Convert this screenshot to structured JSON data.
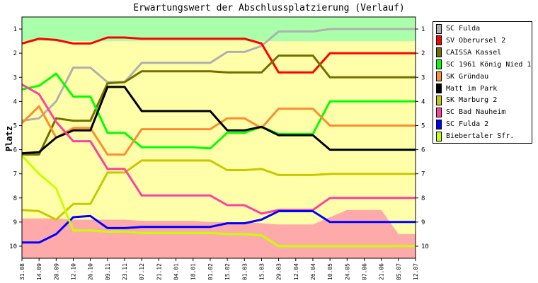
{
  "chart_data": {
    "type": "line",
    "title": "Erwartungswert der Abschlussplatzierung (Verlauf)",
    "xlabel": "",
    "ylabel": "Platz",
    "ylim": [
      10.5,
      0.5
    ],
    "y_inverted": true,
    "yticks": [
      1,
      2,
      3,
      4,
      5,
      6,
      7,
      8,
      9,
      10
    ],
    "categories": [
      "31.08",
      "14.09",
      "28.09",
      "12.10",
      "26.10",
      "09.11",
      "23.11",
      "07.12",
      "21.12",
      "04.01",
      "18.01",
      "01.02",
      "15.02",
      "01.03",
      "15.03",
      "29.03",
      "12.04",
      "26.04",
      "10.05",
      "24.05",
      "07.06",
      "21.06",
      "05.07",
      "12.07"
    ],
    "bands": [
      {
        "name": "promotion",
        "color": "#aaffaa",
        "upper": [
          1.5,
          1.5,
          1.5,
          1.5,
          1.5,
          1.5,
          1.5,
          1.5,
          1.5,
          1.5,
          1.5,
          1.5,
          1.5,
          1.5,
          1.5,
          1.5,
          1.5,
          1.5,
          1.5,
          1.5,
          1.5,
          1.5,
          1.5,
          1.5
        ]
      },
      {
        "name": "relegation",
        "color": "#ffaaaa",
        "lower": [
          8.85,
          8.85,
          8.85,
          8.9,
          8.9,
          8.9,
          8.9,
          8.95,
          8.95,
          8.95,
          8.95,
          9.0,
          9.0,
          9.0,
          9.05,
          9.1,
          9.1,
          9.1,
          8.8,
          8.5,
          8.5,
          8.5,
          9.5,
          9.5
        ]
      }
    ],
    "series": [
      {
        "name": "SC Fulda",
        "color": "#b0b0b0",
        "values": [
          4.8,
          4.7,
          4.0,
          2.6,
          2.6,
          3.2,
          3.2,
          2.4,
          2.4,
          2.4,
          2.4,
          2.4,
          1.95,
          1.95,
          1.7,
          1.1,
          1.1,
          1.1,
          1.0,
          1.0,
          1.0,
          1.0,
          1.0,
          1.0
        ]
      },
      {
        "name": "SV Oberursel 2",
        "color": "#ff0000",
        "values": [
          1.6,
          1.4,
          1.45,
          1.6,
          1.6,
          1.35,
          1.35,
          1.4,
          1.4,
          1.4,
          1.4,
          1.4,
          1.4,
          1.4,
          1.6,
          2.8,
          2.8,
          2.8,
          2.0,
          2.0,
          2.0,
          2.0,
          2.0,
          2.0
        ]
      },
      {
        "name": "CAISSA Kassel",
        "color": "#707000",
        "values": [
          6.2,
          6.2,
          4.7,
          4.8,
          4.8,
          3.25,
          3.2,
          2.75,
          2.75,
          2.75,
          2.75,
          2.75,
          2.8,
          2.8,
          2.8,
          2.1,
          2.1,
          2.1,
          3.0,
          3.0,
          3.0,
          3.0,
          3.0,
          3.0
        ]
      },
      {
        "name": "SC 1961 König Nied 1",
        "color": "#00ff00",
        "values": [
          3.5,
          3.35,
          2.85,
          3.8,
          3.8,
          5.3,
          5.3,
          5.9,
          5.9,
          5.9,
          5.9,
          5.95,
          5.3,
          5.3,
          5.05,
          5.35,
          5.35,
          5.35,
          4.0,
          4.0,
          4.0,
          4.0,
          4.0,
          4.0
        ]
      },
      {
        "name": "SK Gründau",
        "color": "#ff8c30",
        "values": [
          4.9,
          4.2,
          5.5,
          5.1,
          5.1,
          6.2,
          6.2,
          5.15,
          5.15,
          5.15,
          5.15,
          5.15,
          4.7,
          4.7,
          5.1,
          4.3,
          4.3,
          4.3,
          5.0,
          5.0,
          5.0,
          5.0,
          5.0,
          5.0
        ]
      },
      {
        "name": "Matt im Park",
        "color": "#000000",
        "values": [
          6.15,
          6.1,
          5.5,
          5.2,
          5.2,
          3.4,
          3.4,
          4.4,
          4.4,
          4.4,
          4.4,
          4.4,
          5.2,
          5.2,
          5.05,
          5.4,
          5.4,
          5.4,
          6.0,
          6.0,
          6.0,
          6.0,
          6.0,
          6.0
        ]
      },
      {
        "name": "SK Marburg 2",
        "color": "#c8c800",
        "values": [
          8.5,
          8.55,
          8.9,
          8.25,
          8.25,
          6.95,
          6.95,
          6.45,
          6.45,
          6.45,
          6.45,
          6.45,
          6.85,
          6.85,
          6.8,
          7.05,
          7.05,
          7.05,
          7.0,
          7.0,
          7.0,
          7.0,
          7.0,
          7.0
        ]
      },
      {
        "name": "SC Bad Nauheim",
        "color": "#ff40a0",
        "values": [
          3.3,
          3.7,
          4.85,
          5.65,
          5.65,
          6.8,
          6.8,
          7.9,
          7.9,
          7.9,
          7.9,
          7.9,
          8.3,
          8.3,
          8.65,
          8.5,
          8.5,
          8.5,
          8.0,
          8.0,
          8.0,
          8.0,
          8.0,
          8.0
        ]
      },
      {
        "name": "SC Fulda 2",
        "color": "#0000ff",
        "values": [
          9.85,
          9.85,
          9.5,
          8.8,
          8.75,
          9.25,
          9.25,
          9.2,
          9.2,
          9.2,
          9.2,
          9.2,
          9.05,
          9.05,
          8.9,
          8.55,
          8.55,
          8.55,
          9.0,
          9.0,
          9.0,
          9.0,
          9.0,
          9.0
        ]
      },
      {
        "name": "Biebertaler Sfr.",
        "color": "#c8ff00",
        "values": [
          6.25,
          7.0,
          7.6,
          9.35,
          9.35,
          9.4,
          9.4,
          9.45,
          9.45,
          9.45,
          9.45,
          9.45,
          9.5,
          9.5,
          9.55,
          10.0,
          10.0,
          10.0,
          10.0,
          10.0,
          10.0,
          10.0,
          10.0,
          10.0
        ]
      }
    ],
    "grid": false,
    "legend_position": "right"
  }
}
